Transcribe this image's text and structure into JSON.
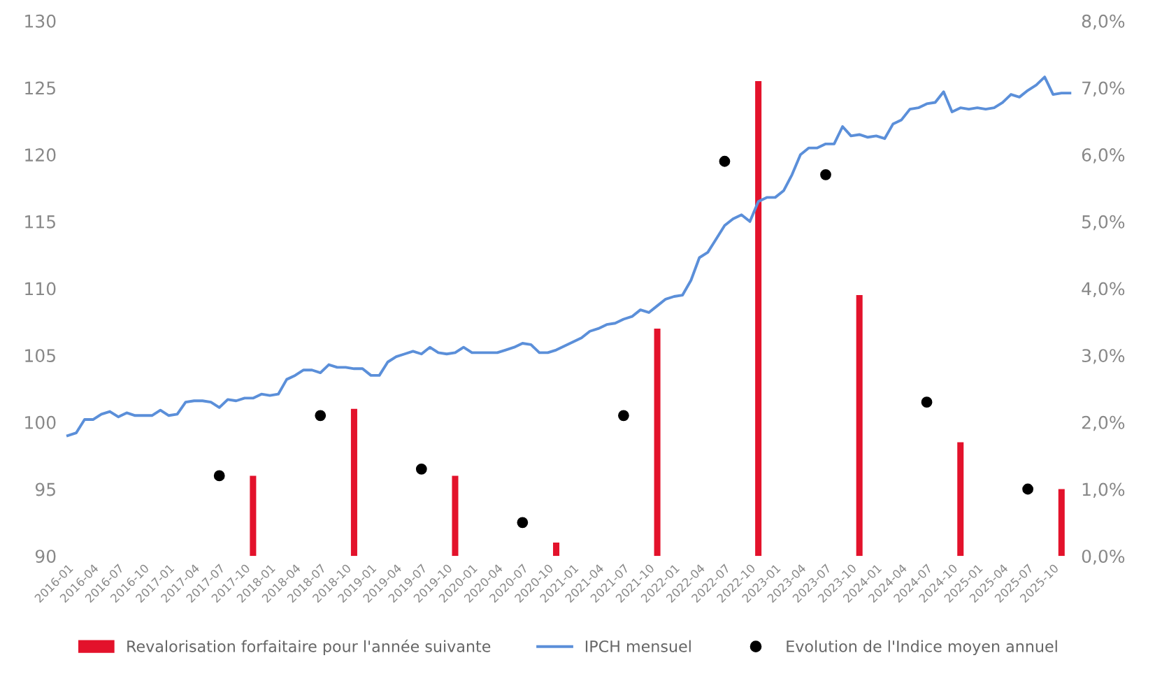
{
  "chart_data": {
    "type": "line",
    "categories": [
      "2016-01",
      null,
      null,
      "2016-04",
      null,
      null,
      "2016-07",
      null,
      null,
      "2016-10",
      null,
      null,
      "2017-01",
      null,
      null,
      "2017-04",
      null,
      null,
      "2017-07",
      null,
      null,
      "2017-10",
      null,
      null,
      "2018-01",
      null,
      null,
      "2018-04",
      null,
      null,
      "2018-07",
      null,
      null,
      "2018-10",
      null,
      null,
      "2019-01",
      null,
      null,
      "2019-04",
      null,
      null,
      "2019-07",
      null,
      null,
      "2019-10",
      null,
      null,
      "2020-01",
      null,
      null,
      "2020-04",
      null,
      null,
      "2020-07",
      null,
      null,
      "2020-10",
      null,
      null,
      "2021-01",
      null,
      null,
      "2021-04",
      null,
      null,
      "2021-07",
      null,
      null,
      "2021-10",
      null,
      null,
      "2022-01",
      null,
      null,
      "2022-04",
      null,
      null,
      "2022-07",
      null,
      null,
      "2022-10",
      null,
      null,
      "2023-01",
      null,
      null,
      "2023-04",
      null,
      null,
      "2023-07",
      null,
      null,
      "2023-10",
      null,
      null,
      "2024-01",
      null,
      null,
      "2024-04",
      null,
      null,
      "2024-07",
      null,
      null,
      "2024-10",
      null,
      null,
      "2025-01",
      null,
      null,
      "2025-04",
      null,
      null,
      "2025-07",
      null,
      null,
      "2025-10",
      null,
      null
    ],
    "series": [
      {
        "name": "Revalorisation forfaitaire pour l'année suivante",
        "type": "bar",
        "axis": "y2",
        "color": "#e3122b",
        "values": [
          null,
          null,
          null,
          null,
          null,
          null,
          null,
          null,
          null,
          null,
          null,
          null,
          null,
          null,
          null,
          null,
          null,
          null,
          null,
          null,
          null,
          null,
          1.2,
          null,
          null,
          null,
          null,
          null,
          null,
          null,
          null,
          null,
          null,
          null,
          2.2,
          null,
          null,
          null,
          null,
          null,
          null,
          null,
          null,
          null,
          null,
          null,
          1.2,
          null,
          null,
          null,
          null,
          null,
          null,
          null,
          null,
          null,
          null,
          null,
          0.2,
          null,
          null,
          null,
          null,
          null,
          null,
          null,
          null,
          null,
          null,
          null,
          3.4,
          null,
          null,
          null,
          null,
          null,
          null,
          null,
          null,
          null,
          null,
          null,
          7.1,
          null,
          null,
          null,
          null,
          null,
          null,
          null,
          null,
          null,
          null,
          null,
          3.9,
          null,
          null,
          null,
          null,
          null,
          null,
          null,
          null,
          null,
          null,
          null,
          1.7,
          null,
          null,
          null,
          null,
          null,
          null,
          null,
          null,
          null,
          null,
          null,
          1.0,
          null
        ]
      },
      {
        "name": "IPCH mensuel",
        "color": "#5b8fd9",
        "values": [
          99.0,
          99.2,
          100.2,
          100.2,
          100.6,
          100.8,
          100.4,
          100.7,
          100.5,
          100.5,
          100.5,
          100.9,
          100.5,
          100.6,
          101.5,
          101.6,
          101.6,
          101.5,
          101.1,
          101.7,
          101.6,
          101.8,
          101.8,
          102.1,
          102.0,
          102.1,
          103.2,
          103.5,
          103.9,
          103.9,
          103.7,
          104.3,
          104.1,
          104.1,
          104.0,
          104.0,
          103.5,
          103.5,
          104.5,
          104.9,
          105.1,
          105.3,
          105.1,
          105.6,
          105.2,
          105.1,
          105.2,
          105.6,
          105.2,
          105.2,
          105.2,
          105.2,
          105.4,
          105.6,
          105.9,
          105.8,
          105.2,
          105.2,
          105.4,
          105.7,
          106.0,
          106.3,
          106.8,
          107.0,
          107.3,
          107.4,
          107.7,
          107.9,
          108.4,
          108.2,
          108.7,
          109.2,
          109.4,
          109.5,
          110.6,
          112.3,
          112.7,
          113.7,
          114.7,
          115.2,
          115.5,
          115.0,
          116.5,
          116.8,
          116.8,
          117.3,
          118.5,
          120.0,
          120.5,
          120.5,
          120.8,
          120.8,
          122.1,
          121.4,
          121.5,
          121.3,
          121.4,
          121.2,
          122.3,
          122.6,
          123.4,
          123.5,
          123.8,
          123.9,
          124.7,
          123.2,
          123.5,
          123.4,
          123.5,
          123.4,
          123.5,
          123.9,
          124.5,
          124.3,
          124.8,
          125.2,
          125.8,
          124.5,
          124.6,
          124.6
        ]
      },
      {
        "name": "Evolution de l'Indice moyen annuel",
        "type": "scatter",
        "axis": "y2",
        "color": "#000000",
        "marker": "circle",
        "values": [
          null,
          null,
          null,
          null,
          null,
          null,
          null,
          null,
          null,
          null,
          null,
          null,
          null,
          null,
          null,
          null,
          null,
          null,
          1.2,
          null,
          null,
          null,
          null,
          null,
          null,
          null,
          null,
          null,
          null,
          null,
          2.1,
          null,
          null,
          null,
          null,
          null,
          null,
          null,
          null,
          null,
          null,
          null,
          1.3,
          null,
          null,
          null,
          null,
          null,
          null,
          null,
          null,
          null,
          null,
          null,
          0.5,
          null,
          null,
          null,
          null,
          null,
          null,
          null,
          null,
          null,
          null,
          null,
          2.1,
          null,
          null,
          null,
          null,
          null,
          null,
          null,
          null,
          null,
          null,
          null,
          5.9,
          null,
          null,
          null,
          null,
          null,
          null,
          null,
          null,
          null,
          null,
          null,
          5.7,
          null,
          null,
          null,
          null,
          null,
          null,
          null,
          null,
          null,
          null,
          null,
          2.3,
          null,
          null,
          null,
          null,
          null,
          null,
          null,
          null,
          null,
          null,
          null,
          1.0,
          null,
          null,
          null,
          null,
          null
        ]
      }
    ],
    "ylim": [
      90,
      130
    ],
    "yticks": [
      90,
      95,
      100,
      105,
      110,
      115,
      120,
      125,
      130
    ],
    "y2lim": [
      0,
      8
    ],
    "y2ticks": [
      {
        "value": 0,
        "label": "0,0%"
      },
      {
        "value": 1,
        "label": "1,0%"
      },
      {
        "value": 2,
        "label": "2,0%"
      },
      {
        "value": 3,
        "label": "3,0%"
      },
      {
        "value": 4,
        "label": "4,0%"
      },
      {
        "value": 5,
        "label": "5,0%"
      },
      {
        "value": 6,
        "label": "6,0%"
      },
      {
        "value": 7,
        "label": "7,0%"
      },
      {
        "value": 8,
        "label": "8,0%"
      }
    ],
    "grid": false,
    "legend": "bottom"
  }
}
